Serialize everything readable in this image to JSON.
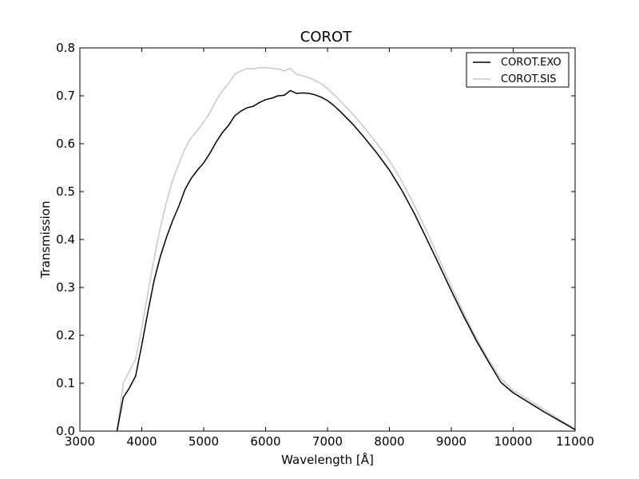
{
  "chart_data": {
    "type": "line",
    "title": "COROT",
    "xlabel": "Wavelength [Å]",
    "ylabel": "Transmission",
    "xlim": [
      3000,
      11000
    ],
    "ylim": [
      0,
      0.8
    ],
    "xticks": [
      3000,
      4000,
      5000,
      6000,
      7000,
      8000,
      9000,
      10000,
      11000
    ],
    "xtick_labels": [
      "3000",
      "4000",
      "5000",
      "6000",
      "7000",
      "8000",
      "9000",
      "10000",
      "11000"
    ],
    "yticks": [
      0,
      0.1,
      0.2,
      0.3,
      0.4,
      0.5,
      0.6,
      0.7,
      0.8
    ],
    "ytick_labels": [
      "0.0",
      "0.1",
      "0.2",
      "0.3",
      "0.4",
      "0.5",
      "0.6",
      "0.7",
      "0.8"
    ],
    "grid": false,
    "legend": "top-right",
    "series": [
      {
        "name": "COROT.EXO",
        "color": "#000000",
        "x": [
          3600,
          3700,
          3800,
          3900,
          4000,
          4100,
          4200,
          4300,
          4400,
          4500,
          4600,
          4700,
          4800,
          4900,
          5000,
          5100,
          5200,
          5300,
          5400,
          5500,
          5600,
          5700,
          5800,
          5900,
          6000,
          6100,
          6200,
          6300,
          6400,
          6500,
          6600,
          6700,
          6800,
          6900,
          7000,
          7100,
          7200,
          7400,
          7600,
          7800,
          8000,
          8200,
          8400,
          8600,
          8800,
          9000,
          9200,
          9400,
          9600,
          9800,
          10000,
          10500,
          11000
        ],
        "y": [
          0.0,
          0.07,
          0.09,
          0.115,
          0.18,
          0.25,
          0.315,
          0.365,
          0.405,
          0.44,
          0.47,
          0.505,
          0.528,
          0.545,
          0.56,
          0.58,
          0.603,
          0.623,
          0.638,
          0.658,
          0.668,
          0.675,
          0.678,
          0.686,
          0.692,
          0.695,
          0.7,
          0.701,
          0.711,
          0.705,
          0.706,
          0.705,
          0.702,
          0.697,
          0.69,
          0.68,
          0.668,
          0.642,
          0.612,
          0.58,
          0.545,
          0.503,
          0.455,
          0.402,
          0.348,
          0.293,
          0.24,
          0.19,
          0.145,
          0.102,
          0.08,
          0.04,
          0.003
        ]
      },
      {
        "name": "COROT.SIS",
        "color": "#c8c8c8",
        "x": [
          3600,
          3700,
          3800,
          3900,
          4000,
          4100,
          4200,
          4300,
          4400,
          4500,
          4600,
          4700,
          4800,
          4900,
          5000,
          5100,
          5200,
          5300,
          5400,
          5500,
          5600,
          5700,
          5800,
          5900,
          6000,
          6100,
          6200,
          6300,
          6400,
          6500,
          6600,
          6700,
          6800,
          6900,
          7000,
          7100,
          7200,
          7400,
          7600,
          7800,
          8000,
          8200,
          8400,
          8600,
          8800,
          9000,
          9200,
          9400,
          9600,
          9800,
          10000,
          10500,
          11000
        ],
        "y": [
          0.0,
          0.1,
          0.125,
          0.15,
          0.215,
          0.29,
          0.36,
          0.425,
          0.478,
          0.525,
          0.558,
          0.59,
          0.613,
          0.628,
          0.645,
          0.665,
          0.69,
          0.71,
          0.725,
          0.745,
          0.752,
          0.757,
          0.756,
          0.759,
          0.759,
          0.757,
          0.756,
          0.752,
          0.757,
          0.745,
          0.742,
          0.738,
          0.732,
          0.725,
          0.715,
          0.703,
          0.69,
          0.663,
          0.633,
          0.6,
          0.565,
          0.522,
          0.472,
          0.418,
          0.36,
          0.302,
          0.247,
          0.195,
          0.15,
          0.11,
          0.085,
          0.045,
          0.004
        ]
      }
    ]
  }
}
